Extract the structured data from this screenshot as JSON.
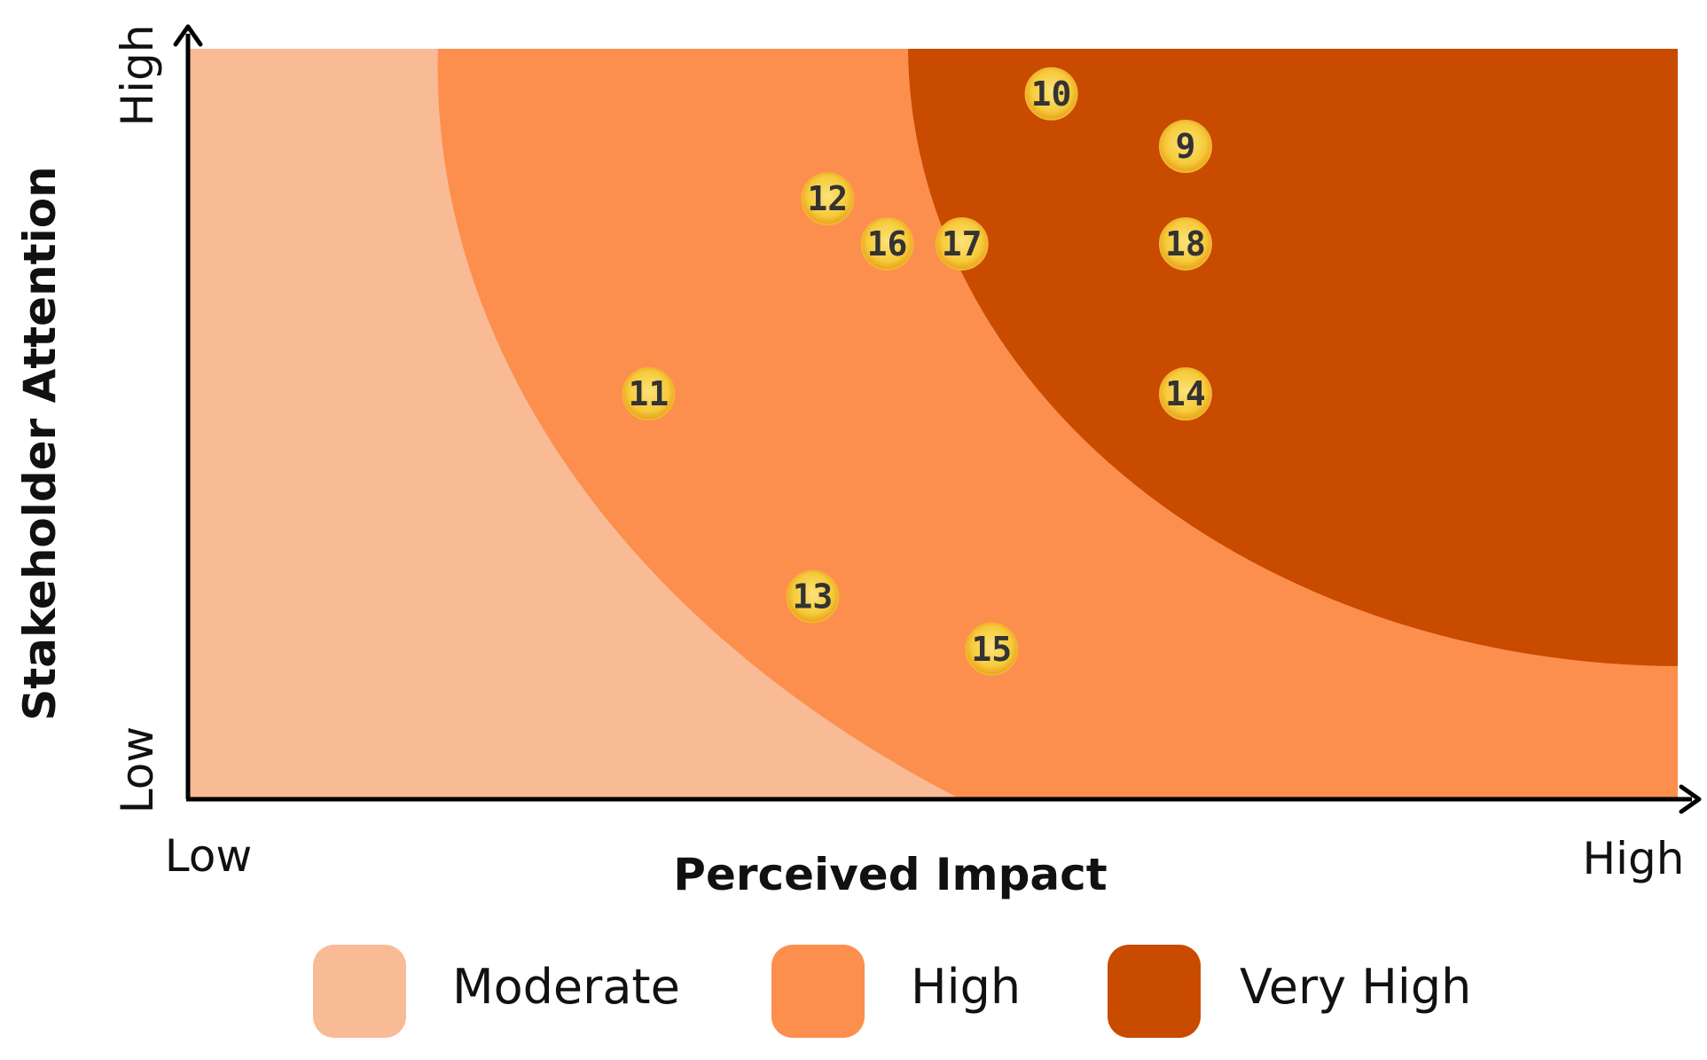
{
  "chart_data": {
    "type": "scatter",
    "xlabel": "Perceived Impact",
    "ylabel": "Stakeholder Attention",
    "x_ticks": [
      "Low",
      "High"
    ],
    "y_ticks": [
      "Low",
      "High"
    ],
    "xlim": [
      0,
      100
    ],
    "ylim": [
      0,
      100
    ],
    "grid": false,
    "legend_position": "bottom",
    "zones": [
      {
        "name": "Moderate",
        "color": "#F9BB95"
      },
      {
        "name": "High",
        "color": "#FC8F4D"
      },
      {
        "name": "Very High",
        "color": "#C84B00"
      }
    ],
    "points": [
      {
        "label": "9",
        "x": 67,
        "y": 87
      },
      {
        "label": "10",
        "x": 58,
        "y": 94
      },
      {
        "label": "11",
        "x": 31,
        "y": 54
      },
      {
        "label": "12",
        "x": 43,
        "y": 80
      },
      {
        "label": "13",
        "x": 42,
        "y": 27
      },
      {
        "label": "14",
        "x": 67,
        "y": 54
      },
      {
        "label": "15",
        "x": 54,
        "y": 20
      },
      {
        "label": "16",
        "x": 47,
        "y": 74
      },
      {
        "label": "17",
        "x": 52,
        "y": 74
      },
      {
        "label": "18",
        "x": 67,
        "y": 74
      }
    ]
  }
}
